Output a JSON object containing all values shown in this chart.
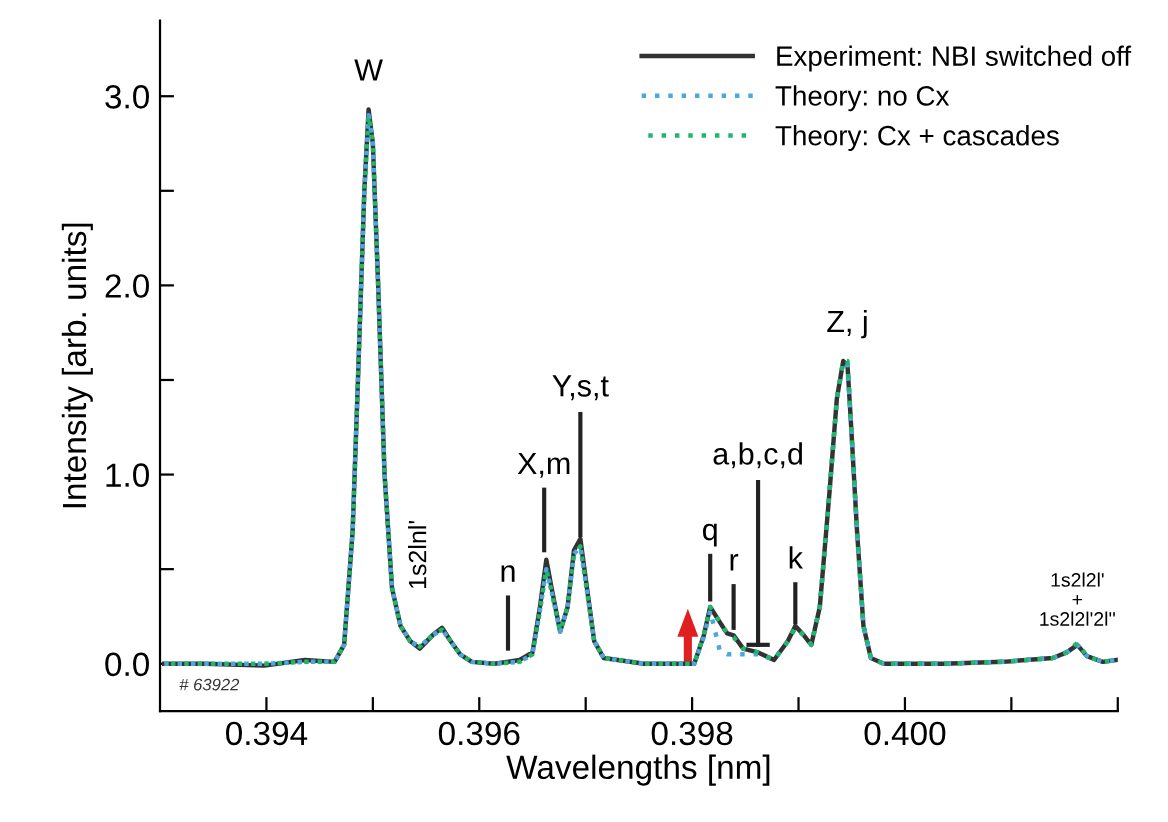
{
  "chart_data": {
    "type": "line",
    "xlabel": "Wavelengths [nm]",
    "ylabel": "Intensity [arb. units]",
    "xlim": [
      0.393,
      0.402
    ],
    "ylim": [
      -0.25,
      3.4
    ],
    "xticks": [
      {
        "value": 0.394,
        "label": "0.394"
      },
      {
        "value": 0.395,
        "label": null
      },
      {
        "value": 0.396,
        "label": "0.396"
      },
      {
        "value": 0.397,
        "label": null
      },
      {
        "value": 0.398,
        "label": "0.398"
      },
      {
        "value": 0.399,
        "label": null
      },
      {
        "value": 0.4,
        "label": "0.400"
      },
      {
        "value": 0.401,
        "label": null
      },
      {
        "value": 0.402,
        "label": null
      }
    ],
    "yticks": [
      {
        "value": 0,
        "label": "0.0"
      },
      {
        "value": 0.5,
        "label": null
      },
      {
        "value": 1,
        "label": "1.0"
      },
      {
        "value": 1.5,
        "label": null
      },
      {
        "value": 2,
        "label": "2.0"
      },
      {
        "value": 2.5,
        "label": null
      },
      {
        "value": 3,
        "label": "3.0"
      }
    ],
    "grid": false,
    "legend": "top right",
    "marker": "none",
    "x": [
      0.39304,
      0.39342,
      0.39398,
      0.39436,
      0.39464,
      0.39473,
      0.39481,
      0.39486,
      0.39492,
      0.39496,
      0.395,
      0.39505,
      0.39511,
      0.39518,
      0.39526,
      0.39535,
      0.39544,
      0.39556,
      0.39565,
      0.39573,
      0.39582,
      0.39593,
      0.39614,
      0.39638,
      0.3965,
      0.39657,
      0.39663,
      0.39668,
      0.39676,
      0.39683,
      0.39689,
      0.39695,
      0.397,
      0.39708,
      0.39717,
      0.39755,
      0.39802,
      0.39811,
      0.39817,
      0.39826,
      0.39833,
      0.39839,
      0.39848,
      0.39862,
      0.39877,
      0.3989,
      0.39897,
      0.39905,
      0.39912,
      0.3992,
      0.39929,
      0.39936,
      0.39942,
      0.39946,
      0.39949,
      0.39955,
      0.39961,
      0.39968,
      0.3998,
      0.40036,
      0.40092,
      0.40139,
      0.40152,
      0.40162,
      0.40171,
      0.40186,
      0.40199
    ],
    "series": [
      {
        "name": "Experiment: NBI switched off",
        "color": "#333333",
        "line_style": "solid",
        "values": [
          0.0,
          0.0,
          -0.01,
          0.02,
          0.01,
          0.1,
          0.7,
          1.5,
          2.5,
          2.93,
          2.75,
          2.0,
          1.0,
          0.4,
          0.2,
          0.12,
          0.08,
          0.15,
          0.19,
          0.12,
          0.05,
          0.01,
          0.0,
          0.02,
          0.06,
          0.3,
          0.55,
          0.4,
          0.17,
          0.3,
          0.6,
          0.66,
          0.45,
          0.12,
          0.03,
          0.0,
          0.0,
          0.15,
          0.3,
          0.22,
          0.16,
          0.15,
          0.08,
          0.06,
          0.02,
          0.12,
          0.2,
          0.15,
          0.1,
          0.3,
          0.9,
          1.4,
          1.6,
          1.58,
          1.3,
          0.7,
          0.2,
          0.03,
          0.0,
          0.0,
          0.01,
          0.03,
          0.06,
          0.1,
          0.04,
          0.01,
          0.02
        ]
      },
      {
        "name": "Theory: no Cx",
        "color": "#4aa8e0",
        "line_style": "dotted",
        "values": [
          0.0,
          0.0,
          0.0,
          0.01,
          0.01,
          0.1,
          0.7,
          1.5,
          2.5,
          2.9,
          2.75,
          2.0,
          1.0,
          0.4,
          0.2,
          0.12,
          0.09,
          0.15,
          0.18,
          0.12,
          0.05,
          0.01,
          0.0,
          0.01,
          0.05,
          0.28,
          0.5,
          0.38,
          0.17,
          0.3,
          0.58,
          0.62,
          0.43,
          0.12,
          0.03,
          0.0,
          0.0,
          0.14,
          0.28,
          0.07,
          0.05,
          0.05,
          0.05,
          0.05,
          0.02,
          0.12,
          0.19,
          0.15,
          0.1,
          0.3,
          0.9,
          1.4,
          1.6,
          1.58,
          1.3,
          0.7,
          0.2,
          0.03,
          0.0,
          0.0,
          0.01,
          0.03,
          0.06,
          0.1,
          0.04,
          0.01,
          0.02
        ]
      },
      {
        "name": "Theory: Cx + cascades",
        "color": "#1fb86a",
        "line_style": "dotted",
        "values": [
          0.0,
          0.0,
          0.0,
          0.01,
          0.01,
          0.1,
          0.7,
          1.5,
          2.5,
          2.9,
          2.75,
          2.0,
          1.0,
          0.4,
          0.2,
          0.12,
          0.09,
          0.15,
          0.18,
          0.12,
          0.05,
          0.01,
          0.0,
          0.01,
          0.05,
          0.28,
          0.5,
          0.38,
          0.17,
          0.3,
          0.58,
          0.62,
          0.43,
          0.12,
          0.03,
          0.0,
          0.0,
          0.15,
          0.3,
          0.22,
          0.16,
          0.14,
          0.08,
          0.06,
          0.02,
          0.12,
          0.19,
          0.15,
          0.1,
          0.3,
          0.9,
          1.4,
          1.6,
          1.6,
          1.3,
          0.7,
          0.2,
          0.03,
          0.0,
          0.0,
          0.01,
          0.03,
          0.06,
          0.11,
          0.04,
          0.01,
          0.02
        ]
      }
    ],
    "annotations": [
      {
        "text": "W",
        "x": 0.39496,
        "y": 2.93
      },
      {
        "text": "1s2lnl'",
        "x": 0.39554,
        "y": 0.19
      },
      {
        "text": "n",
        "x": 0.39627,
        "y": 0.02
      },
      {
        "text": "X,m",
        "x": 0.39661,
        "y": 0.55
      },
      {
        "text": "Y,s,t",
        "x": 0.39695,
        "y": 0.66
      },
      {
        "text": "q",
        "x": 0.39817,
        "y": 0.3
      },
      {
        "text": "r",
        "x": 0.39839,
        "y": 0.15
      },
      {
        "text": "a,b,c,d",
        "x": 0.39862,
        "y": 0.06
      },
      {
        "text": "k",
        "x": 0.39897,
        "y": 0.2
      },
      {
        "text": "Z, j",
        "x": 0.39946,
        "y": 1.6
      },
      {
        "text": "1s2l2l'\n+\n1s2l2l'2l''",
        "x": 0.40162,
        "y": 0.1
      },
      "# 63922"
    ]
  }
}
